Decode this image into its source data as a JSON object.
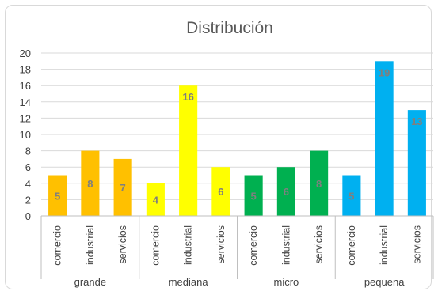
{
  "chart_data": {
    "type": "bar",
    "title": "Distribución",
    "xlabel": "",
    "ylabel": "",
    "ylim": [
      0,
      20
    ],
    "y_ticks": [
      0,
      2,
      4,
      6,
      8,
      10,
      12,
      14,
      16,
      18,
      20
    ],
    "grid": true,
    "groups": [
      {
        "name": "grande",
        "color": "#FFC000",
        "bars": [
          {
            "category": "comercio",
            "value": 5
          },
          {
            "category": "industrial",
            "value": 8
          },
          {
            "category": "servicios",
            "value": 7
          }
        ]
      },
      {
        "name": "mediana",
        "color": "#FFFF00",
        "bars": [
          {
            "category": "comercio",
            "value": 4
          },
          {
            "category": "industrial",
            "value": 16
          },
          {
            "category": "servicios",
            "value": 6
          }
        ]
      },
      {
        "name": "micro",
        "color": "#00B050",
        "bars": [
          {
            "category": "comercio",
            "value": 5
          },
          {
            "category": "industrial",
            "value": 6
          },
          {
            "category": "servicios",
            "value": 8
          }
        ]
      },
      {
        "name": "pequena",
        "color": "#00B0F0",
        "bars": [
          {
            "category": "comercio",
            "value": 5
          },
          {
            "category": "industrial",
            "value": 19
          },
          {
            "category": "servicios",
            "value": 13
          }
        ]
      }
    ]
  }
}
